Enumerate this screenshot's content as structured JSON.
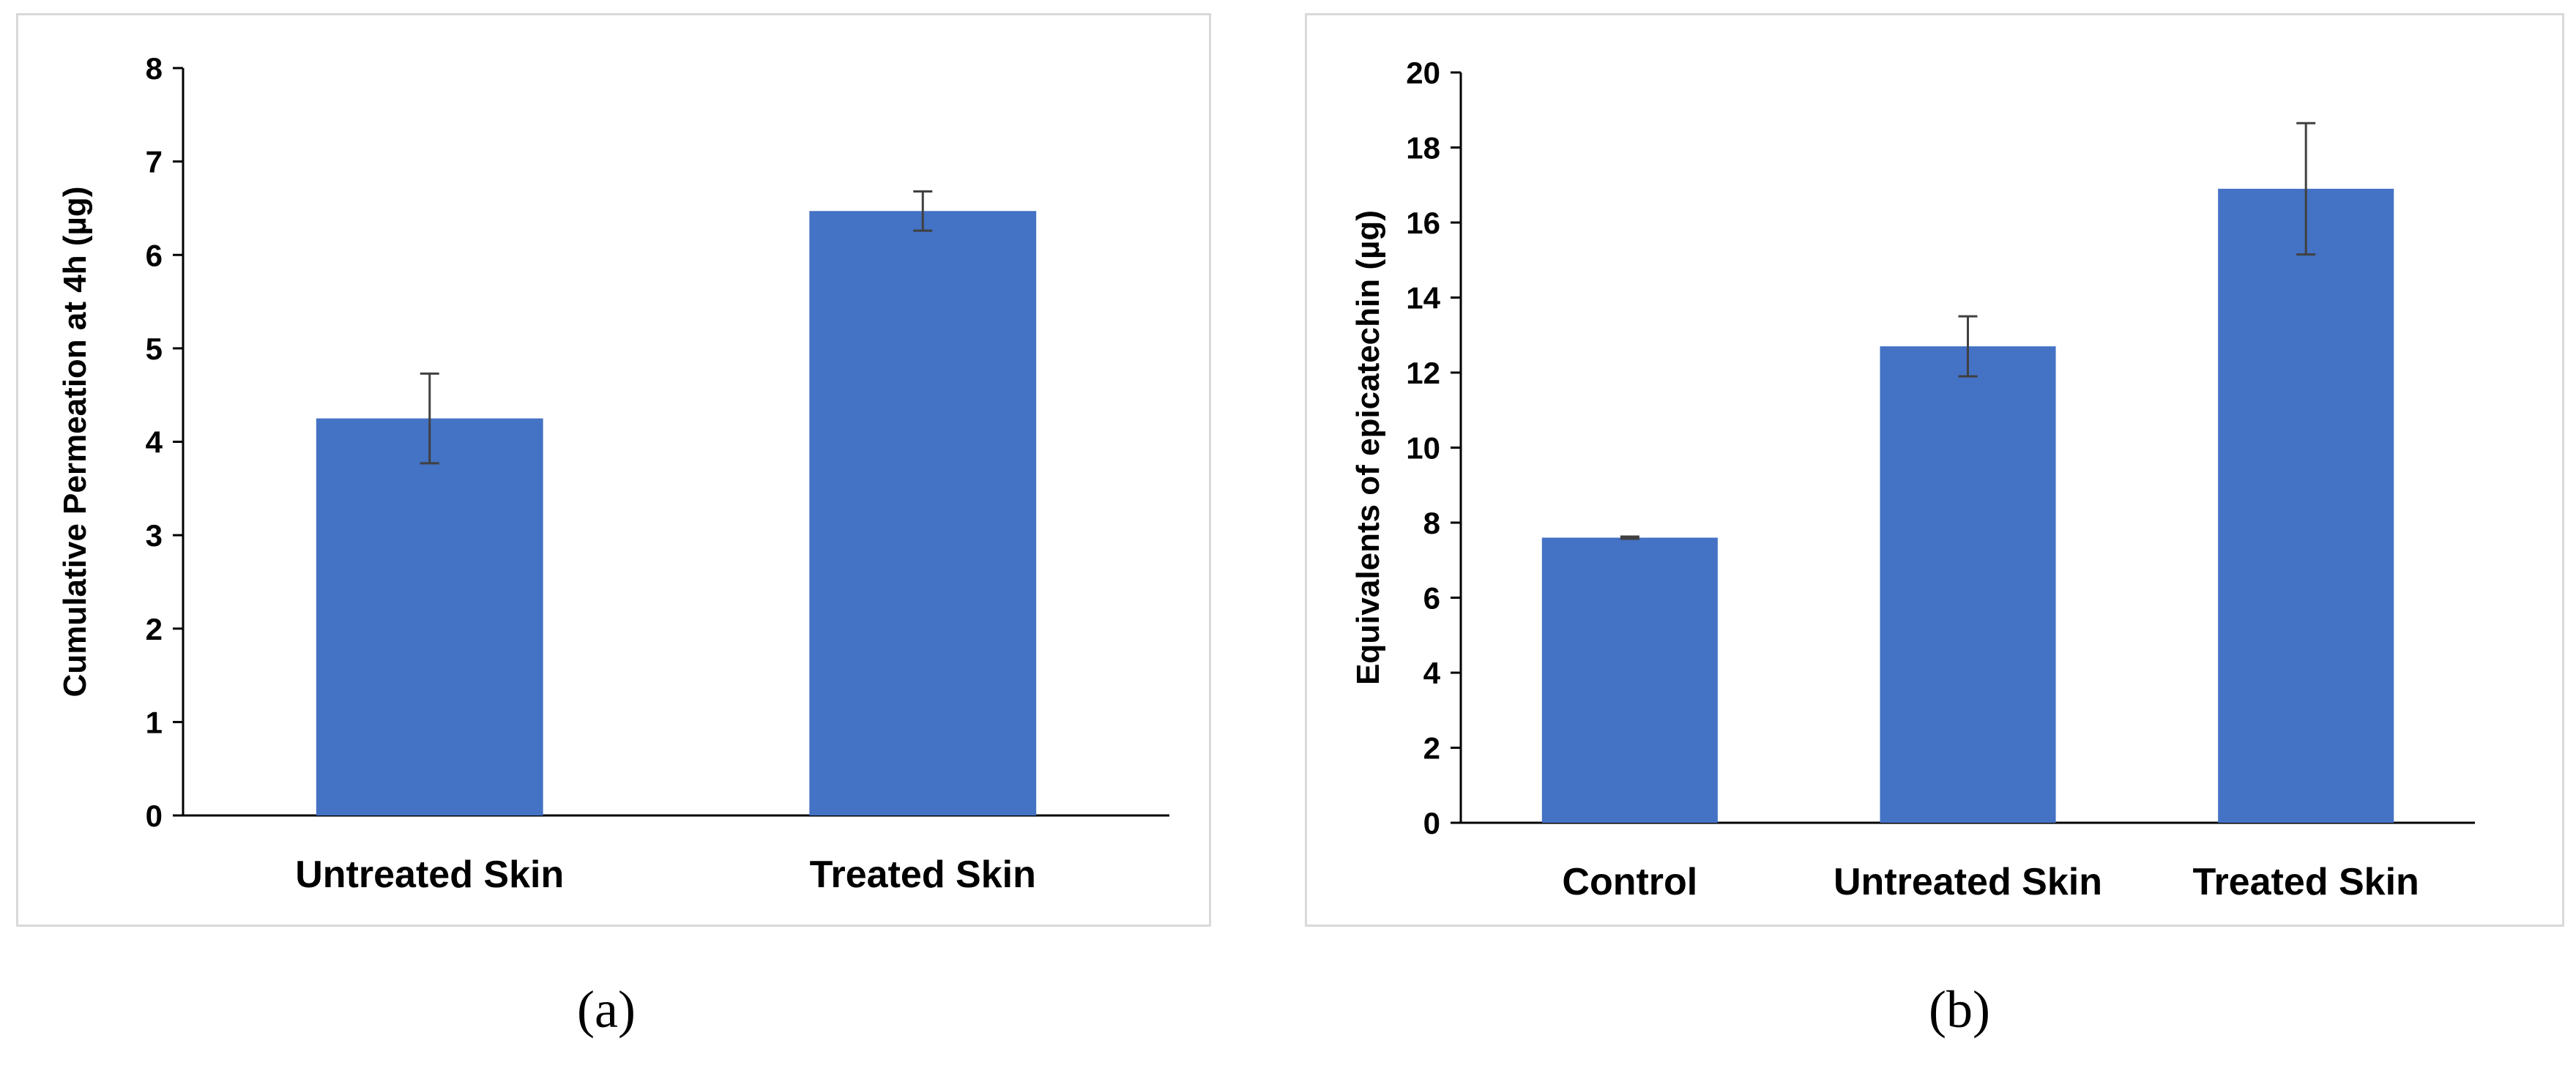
{
  "chart_data": [
    {
      "type": "bar",
      "categories": [
        "Untreated Skin",
        "Treated Skin"
      ],
      "values": [
        4.25,
        6.47
      ],
      "errors": [
        0.48,
        0.21
      ],
      "ylabel": "Cumulative Permeation at 4h (µg)",
      "ylim": [
        0,
        8
      ],
      "yticks": [
        "0",
        "1",
        "2",
        "3",
        "4",
        "5",
        "6",
        "7",
        "8"
      ],
      "grid": false,
      "bar_color": "#4472c4",
      "caption": "(a)"
    },
    {
      "type": "bar",
      "categories": [
        "Control",
        "Untreated Skin",
        "Treated Skin"
      ],
      "values": [
        7.6,
        12.7,
        16.9
      ],
      "errors": [
        0.03,
        0.8,
        1.75
      ],
      "ylabel": "Equivalents of epicatechin (µg)",
      "ylim": [
        0,
        20
      ],
      "yticks": [
        "0",
        "2",
        "4",
        "6",
        "8",
        "10",
        "12",
        "14",
        "16",
        "18",
        "20"
      ],
      "grid": false,
      "bar_color": "#4472c4",
      "caption": "(b)"
    }
  ]
}
